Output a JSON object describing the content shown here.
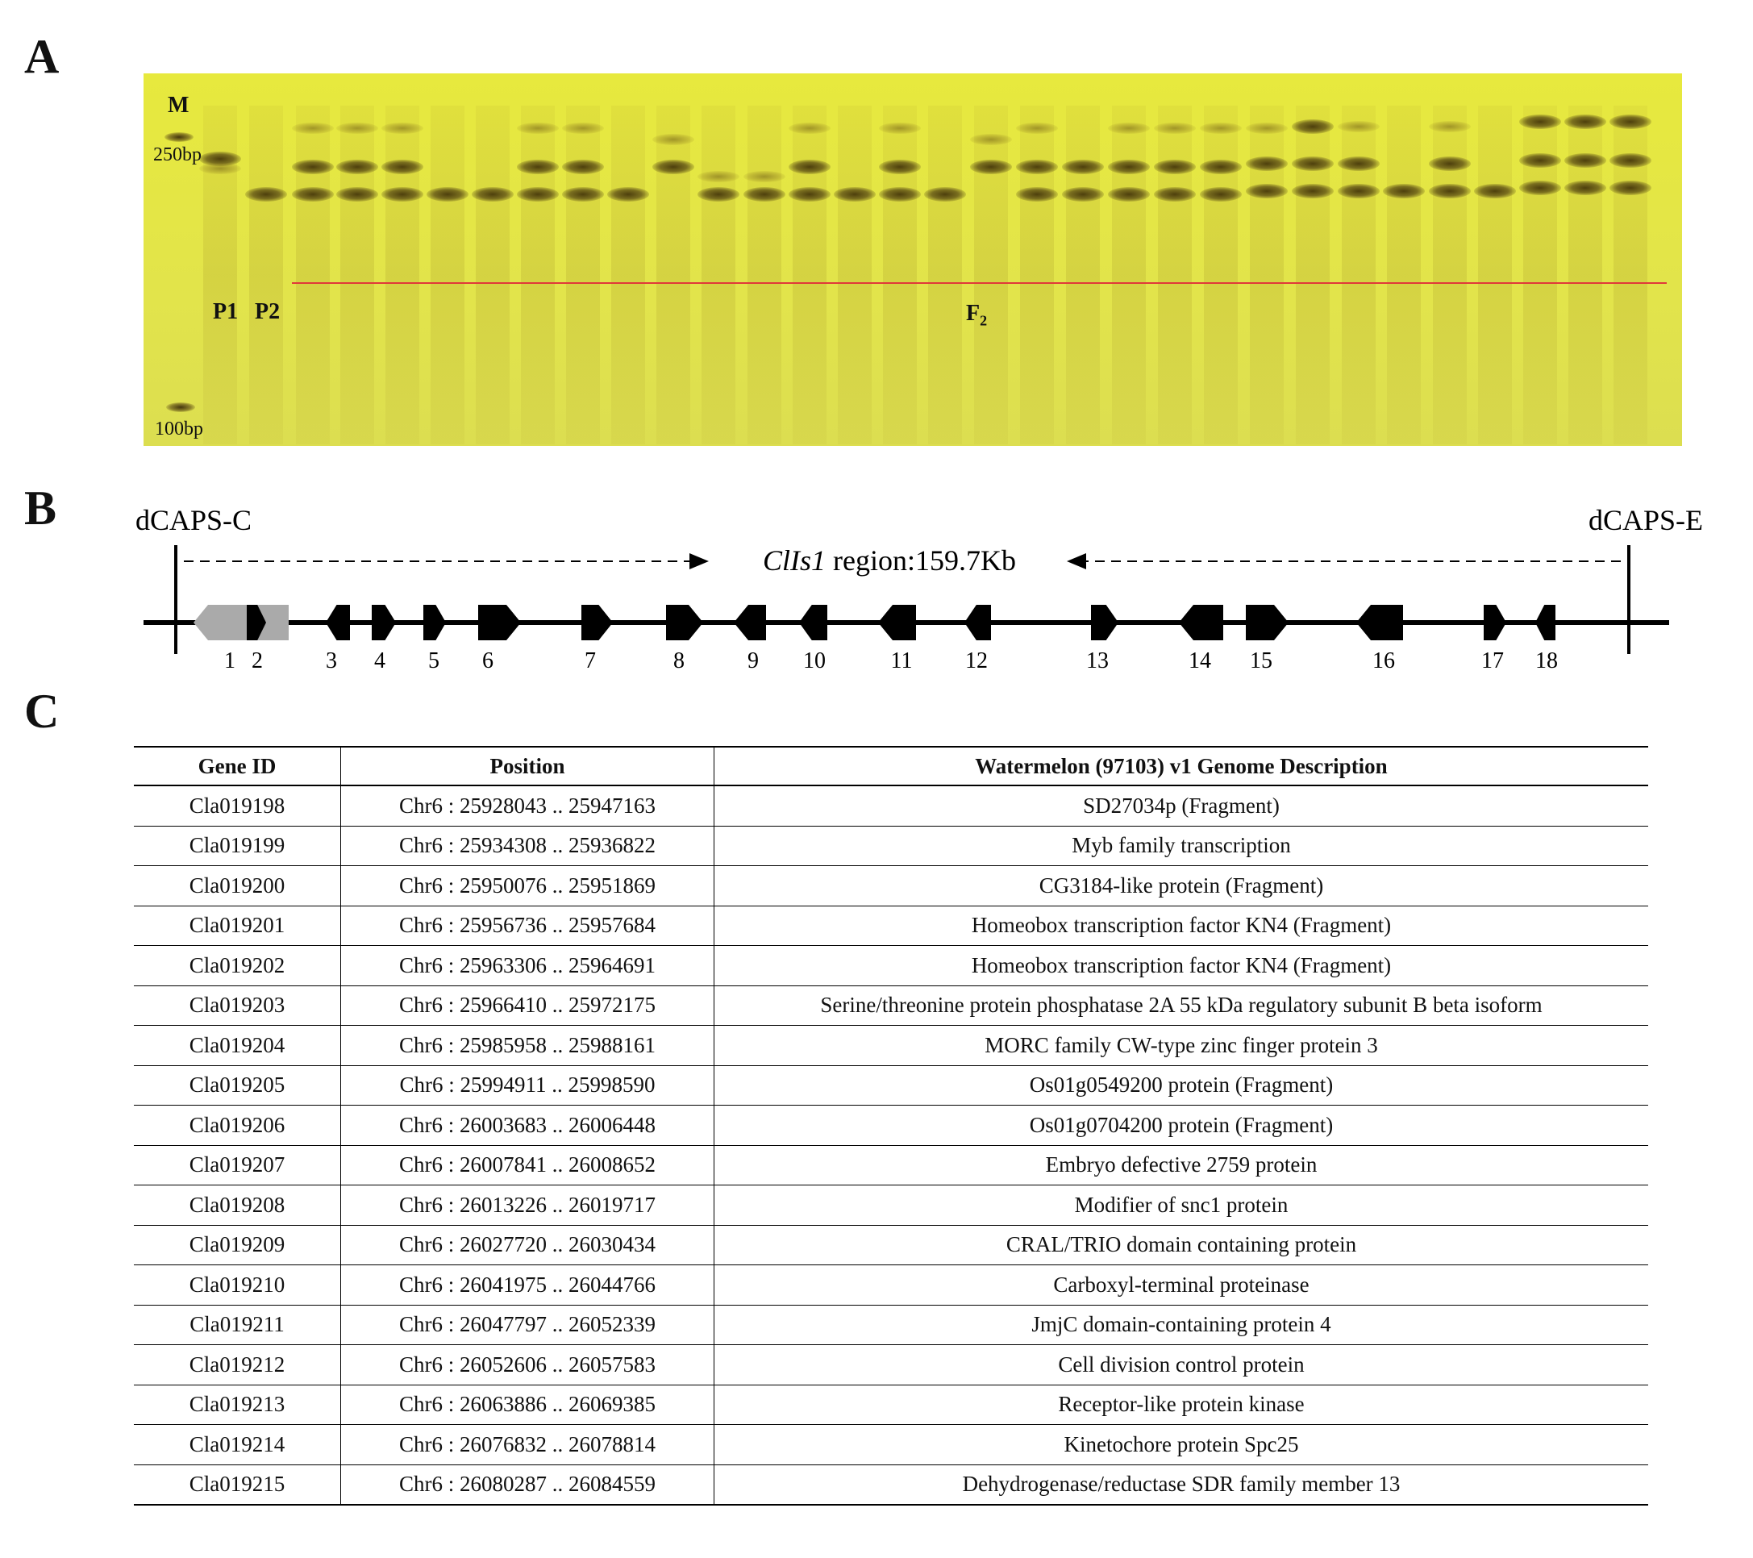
{
  "panels": {
    "a": "A",
    "b": "B",
    "c": "C"
  },
  "gel": {
    "marker_label": "M",
    "marker_250": "250bp",
    "marker_100": "100bp",
    "parent1": "P1",
    "parent2": "P2",
    "f2_label": "F",
    "f2_sub": "2",
    "background_color": "#e4e645",
    "line_color": "#e0393a"
  },
  "diagram": {
    "left_marker": "dCAPS-C",
    "right_marker": "dCAPS-E",
    "region_gene": "ClIs1",
    "region_text": " region:159.7Kb",
    "gene_numbers": [
      "1",
      "2",
      "3",
      "4",
      "5",
      "6",
      "7",
      "8",
      "9",
      "10",
      "11",
      "12",
      "13",
      "14",
      "15",
      "16",
      "17",
      "18"
    ]
  },
  "table": {
    "headers": [
      "Gene ID",
      "Position",
      "Watermelon (97103) v1 Genome Description"
    ],
    "rows": [
      [
        "Cla019198",
        "Chr6 : 25928043 .. 25947163",
        "SD27034p (Fragment)"
      ],
      [
        "Cla019199",
        "Chr6 : 25934308 .. 25936822",
        "Myb family transcription"
      ],
      [
        "Cla019200",
        "Chr6 : 25950076 .. 25951869",
        "CG3184-like protein (Fragment)"
      ],
      [
        "Cla019201",
        "Chr6 : 25956736 .. 25957684",
        "Homeobox transcription factor KN4 (Fragment)"
      ],
      [
        "Cla019202",
        "Chr6 : 25963306 .. 25964691",
        "Homeobox transcription factor KN4 (Fragment)"
      ],
      [
        "Cla019203",
        "Chr6 : 25966410 .. 25972175",
        "Serine/threonine protein phosphatase 2A 55 kDa regulatory subunit B beta isoform"
      ],
      [
        "Cla019204",
        "Chr6 : 25985958 .. 25988161",
        "MORC family CW-type zinc finger protein 3"
      ],
      [
        "Cla019205",
        "Chr6 : 25994911 .. 25998590",
        "Os01g0549200 protein (Fragment)"
      ],
      [
        "Cla019206",
        "Chr6 : 26003683 .. 26006448",
        "Os01g0704200 protein (Fragment)"
      ],
      [
        "Cla019207",
        "Chr6 : 26007841 .. 26008652",
        "Embryo defective 2759 protein"
      ],
      [
        "Cla019208",
        "Chr6 : 26013226 .. 26019717",
        "Modifier of snc1 protein"
      ],
      [
        "Cla019209",
        "Chr6 : 26027720 .. 26030434",
        "CRAL/TRIO domain containing protein"
      ],
      [
        "Cla019210",
        "Chr6 : 26041975 .. 26044766",
        "Carboxyl-terminal proteinase"
      ],
      [
        "Cla019211",
        "Chr6 : 26047797 .. 26052339",
        "JmjC domain-containing protein 4"
      ],
      [
        "Cla019212",
        "Chr6 : 26052606 .. 26057583",
        "Cell division control protein"
      ],
      [
        "Cla019213",
        "Chr6 : 26063886 .. 26069385",
        "Receptor-like protein kinase"
      ],
      [
        "Cla019214",
        "Chr6 : 26076832 .. 26078814",
        "Kinetochore protein Spc25"
      ],
      [
        "Cla019215",
        "Chr6 : 26080287 .. 26084559",
        "Dehydrogenase/reductase SDR family member 13"
      ]
    ]
  }
}
